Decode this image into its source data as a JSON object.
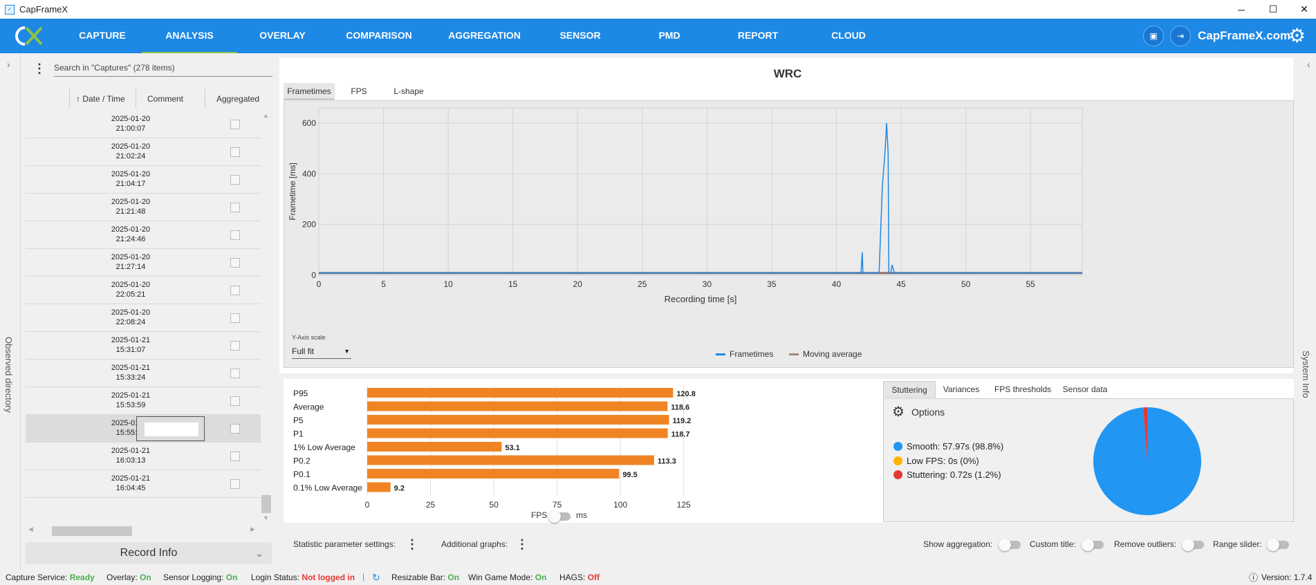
{
  "window": {
    "title": "CapFrameX",
    "minimize": "─",
    "maximize": "☐",
    "close": "✕"
  },
  "nav": {
    "items": [
      "CAPTURE",
      "ANALYSIS",
      "OVERLAY",
      "COMPARISON",
      "AGGREGATION",
      "SENSOR",
      "PMD",
      "REPORT",
      "CLOUD"
    ],
    "active": "ANALYSIS",
    "site": "CapFrameX.com"
  },
  "left": {
    "observed_directory": "Observed directory",
    "search_placeholder": "Search in \"Captures\" (278 items)",
    "columns": [
      "Date / Time",
      "Comment",
      "Aggregated"
    ],
    "sort_arrow": "↑",
    "rows": [
      {
        "date": "2025-01-20",
        "time": "21:00:07"
      },
      {
        "date": "2025-01-20",
        "time": "21:02:24"
      },
      {
        "date": "2025-01-20",
        "time": "21:04:17"
      },
      {
        "date": "2025-01-20",
        "time": "21:21:48"
      },
      {
        "date": "2025-01-20",
        "time": "21:24:46"
      },
      {
        "date": "2025-01-20",
        "time": "21:27:14"
      },
      {
        "date": "2025-01-20",
        "time": "22:05:21"
      },
      {
        "date": "2025-01-20",
        "time": "22:08:24"
      },
      {
        "date": "2025-01-21",
        "time": "15:31:07"
      },
      {
        "date": "2025-01-21",
        "time": "15:33:24"
      },
      {
        "date": "2025-01-21",
        "time": "15:53:59"
      },
      {
        "date": "2025-01-21",
        "time": "15:55:45"
      },
      {
        "date": "2025-01-21",
        "time": "16:03:13"
      },
      {
        "date": "2025-01-21",
        "time": "16:04:45"
      }
    ],
    "selected_row": 11,
    "record_info": "Record Info"
  },
  "right": {
    "system_info": "System Info"
  },
  "chart": {
    "title": "WRC",
    "tabs": [
      "Frametimes",
      "FPS",
      "L-shape"
    ],
    "active_tab": "Frametimes",
    "y_scale_label": "Y-Axis scale",
    "y_scale_value": "Full fit",
    "legend": [
      {
        "name": "Frametimes",
        "color": "#1e88e5"
      },
      {
        "name": "Moving average",
        "color": "#a1887f"
      }
    ]
  },
  "chart_data": [
    {
      "type": "line",
      "title": "WRC",
      "xlabel": "Recording time [s]",
      "ylabel": "Frametime [ms]",
      "xlim": [
        0,
        59
      ],
      "ylim": [
        0,
        660
      ],
      "xticks": [
        0,
        5,
        10,
        15,
        20,
        25,
        30,
        35,
        40,
        45,
        50,
        55
      ],
      "yticks": [
        0,
        200,
        400,
        600
      ],
      "grid": true,
      "legend_position": "bottom",
      "series": [
        {
          "name": "Frametimes",
          "color": "#1e88e5",
          "x": [
            0,
            41.9,
            42.0,
            42.05,
            42.15,
            42.3,
            43.3,
            43.55,
            43.75,
            43.88,
            44.0,
            44.05,
            44.2,
            44.3,
            44.5,
            59
          ],
          "y": [
            8.4,
            8.4,
            90,
            8.4,
            8.4,
            8.4,
            8.4,
            350,
            480,
            600,
            480,
            8.4,
            8.4,
            40,
            8.4,
            8.4
          ]
        },
        {
          "name": "Moving average",
          "color": "#8d6e63",
          "x": [
            0,
            59
          ],
          "y": [
            8.4,
            8.4
          ]
        }
      ]
    },
    {
      "type": "bar",
      "orientation": "horizontal",
      "categories": [
        "P95",
        "Average",
        "P5",
        "P1",
        "1% Low Average",
        "P0.2",
        "P0.1",
        "0.1% Low Average"
      ],
      "values": [
        120.8,
        118.6,
        119.2,
        118.7,
        53.1,
        113.3,
        99.5,
        9.2
      ],
      "xlim": [
        0,
        130
      ],
      "xticks": [
        0,
        25,
        50,
        75,
        100,
        125
      ],
      "color": "#f08424",
      "grid": true
    },
    {
      "type": "pie",
      "categories": [
        "Smooth",
        "Low FPS",
        "Stuttering"
      ],
      "values": [
        98.8,
        0,
        1.2
      ],
      "colors": [
        "#2196f3",
        "#ffb300",
        "#e53935"
      ]
    }
  ],
  "bars_toggle": {
    "left": "FPS",
    "right": "ms"
  },
  "stats": {
    "tabs": [
      "Stuttering",
      "Variances",
      "FPS thresholds",
      "Sensor data"
    ],
    "active_tab": "Stuttering",
    "options_label": "Options",
    "legend": [
      {
        "label": "Smooth:  57.97s (98.8%)",
        "color": "#2196f3"
      },
      {
        "label": "Low FPS:  0s (0%)",
        "color": "#ffb300"
      },
      {
        "label": "Stuttering:  0.72s (1.2%)",
        "color": "#e53935"
      }
    ]
  },
  "settings": {
    "statistic": "Statistic parameter settings:",
    "additional": "Additional graphs:",
    "show_aggregation": "Show aggregation:",
    "custom_title": "Custom title:",
    "remove_outliers": "Remove outliers:",
    "range_slider": "Range slider:"
  },
  "status": {
    "capture_label": "Capture Service:",
    "capture_value": "Ready",
    "overlay_label": "Overlay:",
    "overlay_value": "On",
    "sensor_label": "Sensor Logging:",
    "sensor_value": "On",
    "login_label": "Login Status:",
    "login_value": "Not logged in",
    "rebar_label": "Resizable Bar:",
    "rebar_value": "On",
    "gamemode_label": "Win Game Mode:",
    "gamemode_value": "On",
    "hags_label": "HAGS:",
    "hags_value": "Off",
    "version": "Version: 1.7.4"
  }
}
